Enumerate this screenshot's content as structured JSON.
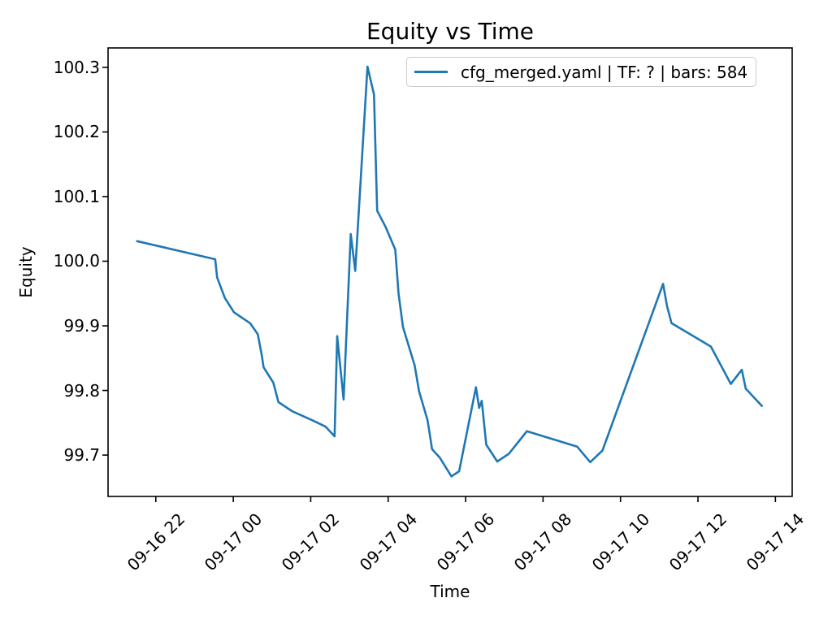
{
  "figure": {
    "title": "Equity vs Time",
    "xlabel": "Time",
    "ylabel": "Equity",
    "legend": {
      "label": "cfg_merged.yaml | TF: ? | bars: 584"
    }
  },
  "chart_data": {
    "type": "line",
    "title": "Equity vs Time",
    "xlabel": "Time",
    "ylabel": "Equity",
    "grid": false,
    "legend_position": "upper right",
    "line_color": "#1f77b4",
    "line_width": 2.6,
    "axis_color": "#000000",
    "legend_border_color": "#cccccc",
    "x_tick_labels": [
      "09-16 22",
      "09-17 00",
      "09-17 02",
      "09-17 04",
      "09-17 06",
      "09-17 08",
      "09-17 10",
      "09-17 12",
      "09-17 14"
    ],
    "y_tick_values": [
      100.3,
      100.2,
      100.1,
      100.0,
      99.9,
      99.8,
      99.7
    ],
    "xlim": [
      "09-16 20:46",
      "09-17 14:26"
    ],
    "ylim": [
      99.636,
      100.33
    ],
    "series": [
      {
        "name": "cfg_merged.yaml | TF: ? | bars: 584",
        "color": "#1f77b4",
        "points": [
          [
            "09-16 21:31",
            100.031
          ],
          [
            "09-16 23:32",
            100.003
          ],
          [
            "09-16 23:35",
            99.975
          ],
          [
            "09-16 23:47",
            99.943
          ],
          [
            "09-17 00:01",
            99.921
          ],
          [
            "09-17 00:26",
            99.904
          ],
          [
            "09-17 00:38",
            99.887
          ],
          [
            "09-17 00:44",
            99.855
          ],
          [
            "09-17 00:47",
            99.836
          ],
          [
            "09-17 01:02",
            99.812
          ],
          [
            "09-17 01:10",
            99.782
          ],
          [
            "09-17 01:31",
            99.768
          ],
          [
            "09-17 02:02",
            99.754
          ],
          [
            "09-17 02:23",
            99.744
          ],
          [
            "09-17 02:37",
            99.729
          ],
          [
            "09-17 02:41",
            99.884
          ],
          [
            "09-17 02:51",
            99.786
          ],
          [
            "09-17 03:02",
            100.042
          ],
          [
            "09-17 03:09",
            99.985
          ],
          [
            "09-17 03:28",
            100.301
          ],
          [
            "09-17 03:38",
            100.258
          ],
          [
            "09-17 03:43",
            100.078
          ],
          [
            "09-17 03:56",
            100.053
          ],
          [
            "09-17 04:11",
            100.018
          ],
          [
            "09-17 04:16",
            99.95
          ],
          [
            "09-17 04:23",
            99.898
          ],
          [
            "09-17 04:41",
            99.839
          ],
          [
            "09-17 04:48",
            99.798
          ],
          [
            "09-17 05:01",
            99.754
          ],
          [
            "09-17 05:08",
            99.709
          ],
          [
            "09-17 05:20",
            99.696
          ],
          [
            "09-17 05:38",
            99.667
          ],
          [
            "09-17 05:50",
            99.675
          ],
          [
            "09-17 06:16",
            99.805
          ],
          [
            "09-17 06:21",
            99.773
          ],
          [
            "09-17 06:25",
            99.784
          ],
          [
            "09-17 06:32",
            99.716
          ],
          [
            "09-17 06:49",
            99.69
          ],
          [
            "09-17 07:07",
            99.702
          ],
          [
            "09-17 07:35",
            99.737
          ],
          [
            "09-17 08:53",
            99.713
          ],
          [
            "09-17 09:13",
            99.689
          ],
          [
            "09-17 09:32",
            99.707
          ],
          [
            "09-17 11:06",
            99.965
          ],
          [
            "09-17 11:12",
            99.931
          ],
          [
            "09-17 11:19",
            99.904
          ],
          [
            "09-17 12:20",
            99.868
          ],
          [
            "09-17 12:51",
            99.81
          ],
          [
            "09-17 13:08",
            99.832
          ],
          [
            "09-17 13:14",
            99.803
          ],
          [
            "09-17 13:39",
            99.776
          ]
        ]
      }
    ]
  }
}
